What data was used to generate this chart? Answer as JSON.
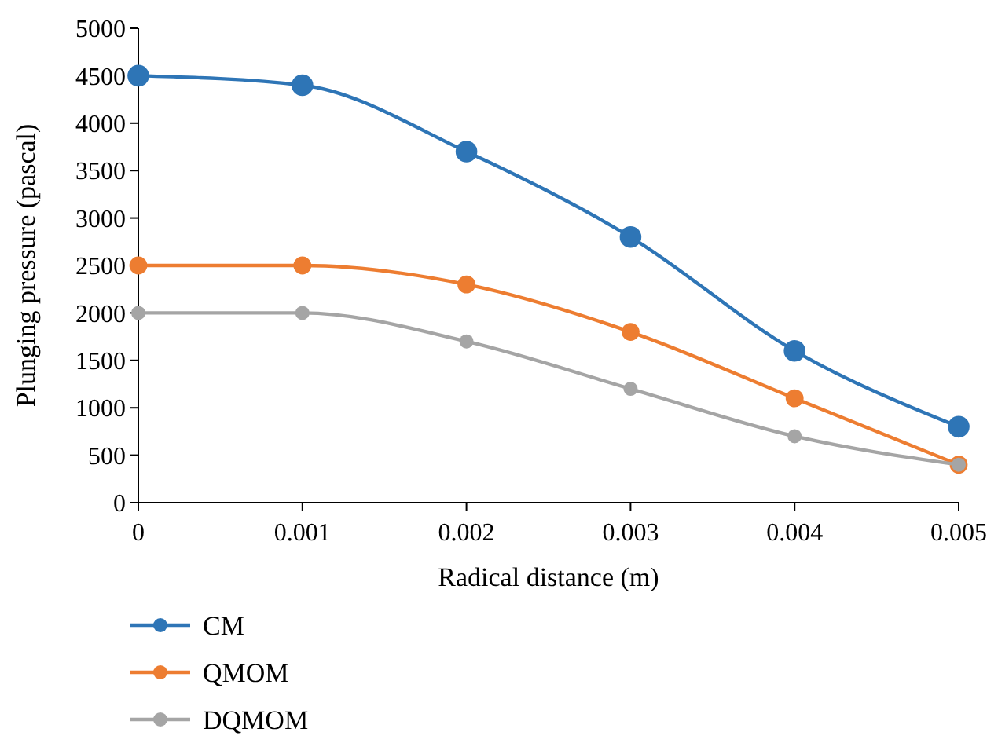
{
  "chart_data": {
    "type": "line",
    "xlabel": "Radical distance (m)",
    "ylabel": "Plunging pressure (pascal)",
    "x": [
      0,
      0.001,
      0.002,
      0.003,
      0.004,
      0.005
    ],
    "series": [
      {
        "name": "CM",
        "color": "#2e75b6",
        "values": [
          4500,
          4400,
          3700,
          2800,
          1600,
          800
        ]
      },
      {
        "name": "QMOM",
        "color": "#ed7d31",
        "values": [
          2500,
          2500,
          2300,
          1800,
          1100,
          400
        ]
      },
      {
        "name": "DQMOM",
        "color": "#a5a5a5",
        "values": [
          2000,
          2000,
          1700,
          1200,
          700,
          400
        ]
      }
    ],
    "xlim": [
      0,
      0.005
    ],
    "xticks": [
      0,
      0.001,
      0.002,
      0.003,
      0.004,
      0.005
    ],
    "ylim": [
      0,
      5000
    ],
    "yticks": [
      0,
      500,
      1000,
      1500,
      2000,
      2500,
      3000,
      3500,
      4000,
      4500,
      5000
    ],
    "grid": false,
    "legend": "bottom left",
    "marker": "circle",
    "line_style": "solid"
  }
}
